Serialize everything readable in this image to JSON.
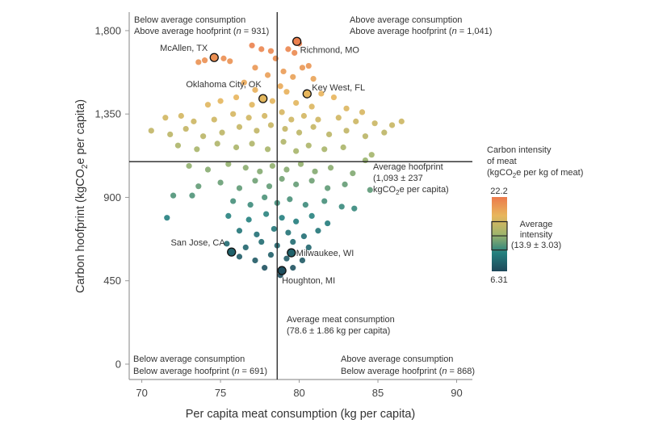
{
  "chart_data": {
    "type": "scatter",
    "xlabel": "Per capita meat consumption (kg per capita)",
    "ylabel_parts": [
      "Carbon hoofprint (kgCO",
      "2",
      "e per capita)"
    ],
    "xlim": [
      69.2,
      91
    ],
    "ylim": [
      -83,
      1900
    ],
    "xticks": [
      70,
      75,
      80,
      85,
      90
    ],
    "yticks": [
      0,
      450,
      900,
      1350,
      1800
    ],
    "ytick_labels": [
      "0",
      "450",
      "900",
      "1,350",
      "1,800"
    ],
    "grid": false,
    "average_consumption": 78.6,
    "average_hoofprint": 1093,
    "quadrants": {
      "top_left": [
        "Below average consumption",
        "Above average hoofprint (",
        "n",
        " = 931)"
      ],
      "top_right": [
        "Above average consumption",
        "Above average hoofprint (",
        "n",
        " = 1,041)"
      ],
      "bottom_left": [
        "Below average consumption",
        "Below average hoofprint (",
        "n",
        " = 691)"
      ],
      "bottom_right": [
        "Above average consumption",
        "Below average hoofprint (",
        "n",
        " = 868)"
      ]
    },
    "annotations": {
      "avg_hoofprint": [
        "Average hoofprint",
        "(1,093 ± 237",
        "kgCO",
        "2",
        "e per capita)"
      ],
      "avg_consumption": [
        "Average meat consumption",
        "(78.6 ± 1.86 kg per capita)"
      ]
    },
    "highlighted": [
      {
        "label": "McAllen, TX",
        "x": 74.6,
        "y": 1655,
        "i": 20.8
      },
      {
        "label": "Richmond, MO",
        "x": 79.85,
        "y": 1742,
        "i": 21.8
      },
      {
        "label": "Oklahoma City, OK",
        "x": 77.7,
        "y": 1433,
        "i": 17.9
      },
      {
        "label": "Key West, FL",
        "x": 80.5,
        "y": 1459,
        "i": 18.2
      },
      {
        "label": "San Jose, CA",
        "x": 75.7,
        "y": 605,
        "i": 8.1
      },
      {
        "label": "Milwaukee, WI",
        "x": 79.5,
        "y": 601,
        "i": 8.1
      },
      {
        "label": "Houghton, MI",
        "x": 78.9,
        "y": 505,
        "i": 6.9
      }
    ],
    "points_x_y_intensity": [
      [
        74.0,
        1640,
        20.8
      ],
      [
        73.6,
        1630,
        20.7
      ],
      [
        75.2,
        1650,
        20.9
      ],
      [
        75.6,
        1635,
        20.7
      ],
      [
        77.0,
        1720,
        21.7
      ],
      [
        77.6,
        1700,
        21.4
      ],
      [
        78.2,
        1690,
        21.3
      ],
      [
        79.3,
        1700,
        21.4
      ],
      [
        79.7,
        1680,
        21.2
      ],
      [
        80.0,
        1730,
        21.8
      ],
      [
        78.5,
        1650,
        20.9
      ],
      [
        80.6,
        1610,
        20.4
      ],
      [
        80.2,
        1600,
        20.3
      ],
      [
        77.2,
        1600,
        20.3
      ],
      [
        78.0,
        1560,
        19.8
      ],
      [
        79.0,
        1580,
        20.0
      ],
      [
        79.6,
        1550,
        19.6
      ],
      [
        80.9,
        1540,
        19.5
      ],
      [
        76.5,
        1520,
        19.2
      ],
      [
        78.8,
        1500,
        19.0
      ],
      [
        77.2,
        1480,
        18.7
      ],
      [
        79.2,
        1470,
        18.6
      ],
      [
        81.4,
        1460,
        18.5
      ],
      [
        82.2,
        1440,
        18.3
      ],
      [
        76.0,
        1440,
        18.3
      ],
      [
        75.0,
        1420,
        18.0
      ],
      [
        74.2,
        1400,
        17.8
      ],
      [
        77.0,
        1400,
        17.8
      ],
      [
        78.3,
        1420,
        18.0
      ],
      [
        79.8,
        1410,
        17.9
      ],
      [
        80.8,
        1390,
        17.6
      ],
      [
        83.0,
        1380,
        17.5
      ],
      [
        84.0,
        1360,
        17.3
      ],
      [
        71.5,
        1330,
        16.9
      ],
      [
        72.5,
        1340,
        17.1
      ],
      [
        73.3,
        1310,
        16.7
      ],
      [
        74.6,
        1320,
        16.8
      ],
      [
        75.8,
        1350,
        17.2
      ],
      [
        76.8,
        1330,
        16.9
      ],
      [
        77.8,
        1340,
        17.1
      ],
      [
        78.9,
        1360,
        17.3
      ],
      [
        79.5,
        1320,
        16.8
      ],
      [
        80.3,
        1340,
        17.1
      ],
      [
        81.2,
        1320,
        16.8
      ],
      [
        82.5,
        1330,
        16.9
      ],
      [
        83.6,
        1310,
        16.7
      ],
      [
        84.8,
        1300,
        16.6
      ],
      [
        85.9,
        1290,
        16.5
      ],
      [
        86.5,
        1310,
        16.7
      ],
      [
        70.6,
        1260,
        16.1
      ],
      [
        71.8,
        1240,
        15.8
      ],
      [
        72.8,
        1270,
        16.2
      ],
      [
        73.9,
        1230,
        15.7
      ],
      [
        75.1,
        1250,
        15.9
      ],
      [
        76.2,
        1280,
        16.3
      ],
      [
        77.3,
        1260,
        16.1
      ],
      [
        78.2,
        1290,
        16.5
      ],
      [
        79.1,
        1270,
        16.2
      ],
      [
        80.0,
        1250,
        15.9
      ],
      [
        80.9,
        1280,
        16.3
      ],
      [
        81.9,
        1240,
        15.8
      ],
      [
        83.0,
        1260,
        16.1
      ],
      [
        84.2,
        1230,
        15.7
      ],
      [
        85.4,
        1250,
        15.9
      ],
      [
        72.3,
        1180,
        15.0
      ],
      [
        73.5,
        1160,
        14.8
      ],
      [
        74.8,
        1190,
        15.1
      ],
      [
        76.0,
        1170,
        14.9
      ],
      [
        77.0,
        1190,
        15.1
      ],
      [
        78.0,
        1160,
        14.8
      ],
      [
        79.0,
        1200,
        15.2
      ],
      [
        79.8,
        1150,
        14.7
      ],
      [
        80.6,
        1180,
        15.0
      ],
      [
        81.6,
        1160,
        14.8
      ],
      [
        82.8,
        1170,
        14.9
      ],
      [
        84.6,
        1130,
        14.5
      ],
      [
        73.0,
        1070,
        13.8
      ],
      [
        74.2,
        1050,
        13.5
      ],
      [
        75.5,
        1080,
        13.9
      ],
      [
        76.6,
        1060,
        13.6
      ],
      [
        77.5,
        1040,
        13.4
      ],
      [
        78.3,
        1070,
        13.8
      ],
      [
        79.2,
        1050,
        13.5
      ],
      [
        80.1,
        1080,
        13.9
      ],
      [
        81.0,
        1040,
        13.4
      ],
      [
        82.0,
        1060,
        13.6
      ],
      [
        83.4,
        1030,
        13.3
      ],
      [
        84.2,
        1100,
        14.0
      ],
      [
        73.6,
        960,
        12.3
      ],
      [
        75.0,
        980,
        12.5
      ],
      [
        76.2,
        950,
        12.2
      ],
      [
        77.2,
        990,
        12.7
      ],
      [
        78.1,
        960,
        12.3
      ],
      [
        78.9,
        1000,
        12.8
      ],
      [
        79.8,
        970,
        12.4
      ],
      [
        80.8,
        990,
        12.7
      ],
      [
        81.8,
        950,
        12.2
      ],
      [
        82.9,
        970,
        12.4
      ],
      [
        84.5,
        940,
        12.1
      ],
      [
        72.0,
        910,
        11.7
      ],
      [
        73.2,
        910,
        11.7
      ],
      [
        75.8,
        880,
        11.4
      ],
      [
        76.9,
        860,
        11.1
      ],
      [
        77.8,
        900,
        11.6
      ],
      [
        78.6,
        870,
        11.3
      ],
      [
        79.4,
        890,
        11.5
      ],
      [
        80.4,
        860,
        11.1
      ],
      [
        81.6,
        880,
        11.4
      ],
      [
        82.7,
        850,
        11.0
      ],
      [
        83.5,
        840,
        10.9
      ],
      [
        71.6,
        790,
        10.3
      ],
      [
        75.5,
        800,
        10.4
      ],
      [
        76.8,
        780,
        10.2
      ],
      [
        77.9,
        810,
        10.5
      ],
      [
        78.9,
        790,
        10.3
      ],
      [
        79.8,
        770,
        10.1
      ],
      [
        80.8,
        800,
        10.4
      ],
      [
        81.8,
        760,
        10.0
      ],
      [
        76.2,
        720,
        9.5
      ],
      [
        77.3,
        700,
        9.2
      ],
      [
        78.4,
        730,
        9.6
      ],
      [
        79.3,
        710,
        9.4
      ],
      [
        80.3,
        690,
        9.1
      ],
      [
        81.2,
        720,
        9.5
      ],
      [
        75.4,
        650,
        8.7
      ],
      [
        76.6,
        630,
        8.5
      ],
      [
        77.6,
        660,
        8.8
      ],
      [
        78.6,
        640,
        8.5
      ],
      [
        79.6,
        660,
        8.8
      ],
      [
        80.6,
        630,
        8.5
      ],
      [
        76.2,
        580,
        7.8
      ],
      [
        77.2,
        560,
        7.6
      ],
      [
        78.2,
        590,
        7.9
      ],
      [
        79.2,
        570,
        7.7
      ],
      [
        80.2,
        560,
        7.6
      ],
      [
        77.8,
        520,
        7.1
      ],
      [
        78.8,
        480,
        6.7
      ],
      [
        79.6,
        520,
        7.1
      ]
    ],
    "colorbar": {
      "title": [
        "Carbon intensity",
        "of meat",
        "(kgCO",
        "2",
        "e per kg of meat)"
      ],
      "min": 6.31,
      "max": 22.2,
      "min_label": "6.31",
      "max_label": "22.2",
      "average": 13.9,
      "sd": 3.03,
      "average_label": [
        "Average",
        "intensity",
        "(13.9 ± 3.03)"
      ],
      "colors": [
        "#1e4759",
        "#23807f",
        "#9fb56c",
        "#e8b65c",
        "#ec7a4c"
      ]
    }
  }
}
